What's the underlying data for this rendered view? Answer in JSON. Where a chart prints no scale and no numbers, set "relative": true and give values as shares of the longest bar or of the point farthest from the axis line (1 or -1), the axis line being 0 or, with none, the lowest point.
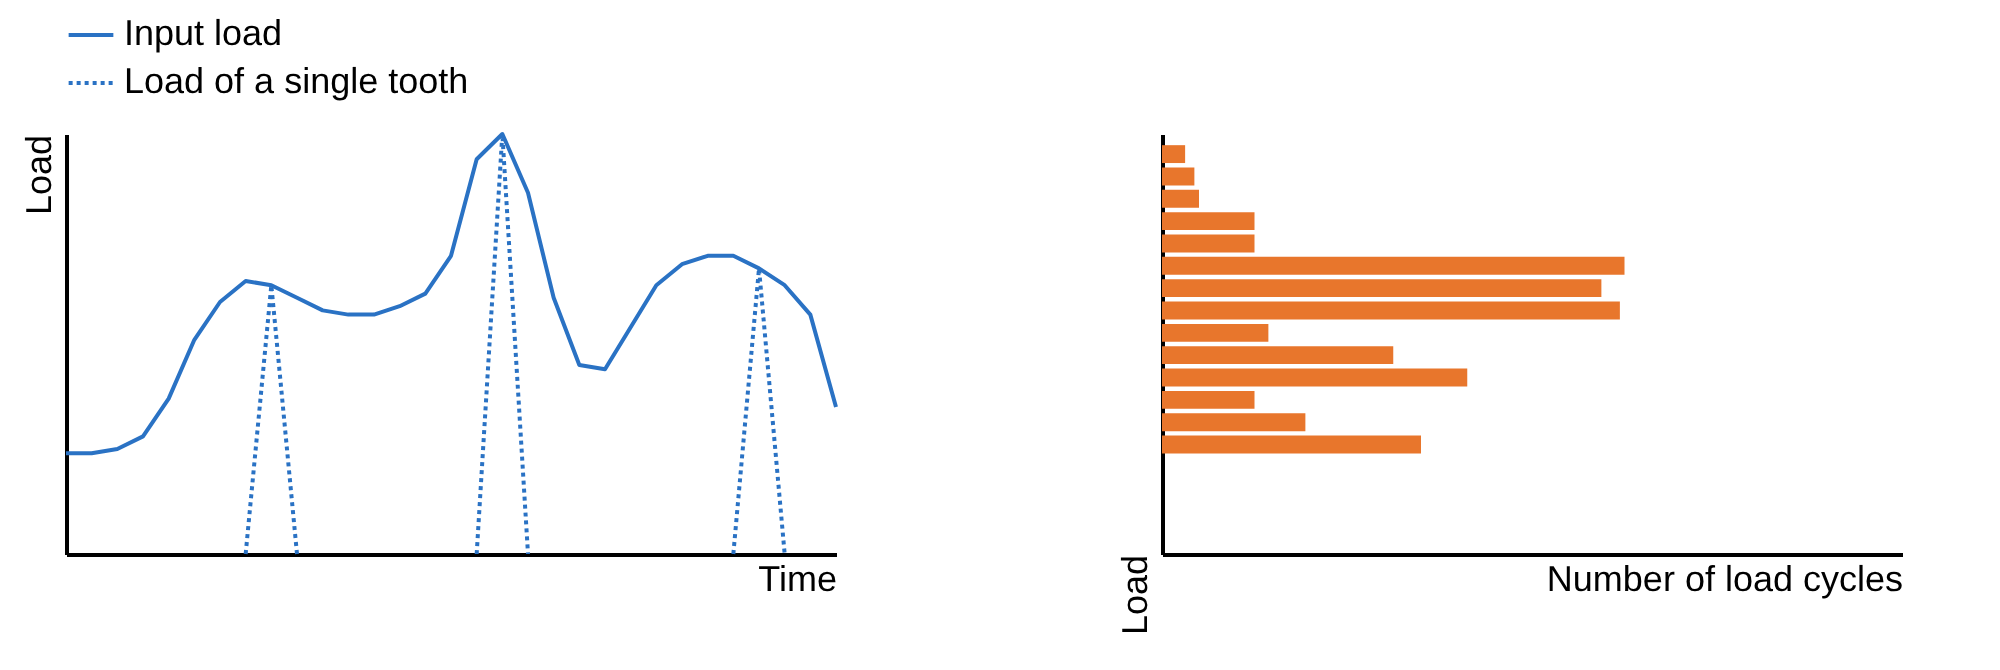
{
  "chart_data": [
    {
      "type": "line",
      "relative": true,
      "xlabel": "Time",
      "ylabel": "Load",
      "legend": "top left",
      "grid": false,
      "tick_labels": false,
      "categories": [
        null,
        null,
        null,
        null,
        null,
        null,
        null,
        null,
        null,
        null,
        null,
        null,
        null,
        null,
        null,
        null,
        null,
        null,
        null,
        null,
        null,
        null,
        null,
        null,
        null,
        null,
        null,
        null,
        null,
        null,
        null
      ],
      "series": [
        {
          "name": "Input load",
          "color": "#2a72c4",
          "line_style": "solid",
          "values": [
            0.24,
            0.24,
            0.25,
            0.28,
            0.37,
            0.51,
            0.6,
            0.65,
            0.64,
            0.61,
            0.58,
            0.57,
            0.57,
            0.59,
            0.62,
            0.71,
            0.94,
            1.0,
            0.86,
            0.61,
            0.45,
            0.44,
            0.54,
            0.64,
            0.69,
            0.71,
            0.71,
            0.68,
            0.64,
            0.57,
            0.35
          ]
        },
        {
          "name": "Load of a single tooth",
          "color": "#2a72c4",
          "line_style": "dotted",
          "values": [
            null,
            null,
            null,
            null,
            null,
            null,
            null,
            0,
            0.64,
            0,
            null,
            null,
            null,
            null,
            null,
            null,
            0,
            1.0,
            0,
            null,
            null,
            null,
            null,
            null,
            null,
            null,
            0,
            0.68,
            0,
            null,
            null
          ]
        }
      ]
    },
    {
      "type": "bar",
      "orientation": "horizontal",
      "relative": true,
      "xlabel": "Number of load cycles",
      "ylabel": "Load",
      "grid": false,
      "tick_labels": false,
      "color": "#e8762c",
      "categories": [
        null,
        null,
        null,
        null,
        null,
        null,
        null,
        null,
        null,
        null,
        null,
        null,
        null,
        null
      ],
      "values": [
        0.05,
        0.07,
        0.08,
        0.2,
        0.2,
        1.0,
        0.95,
        0.99,
        0.23,
        0.5,
        0.66,
        0.2,
        0.31,
        0.56
      ]
    }
  ]
}
